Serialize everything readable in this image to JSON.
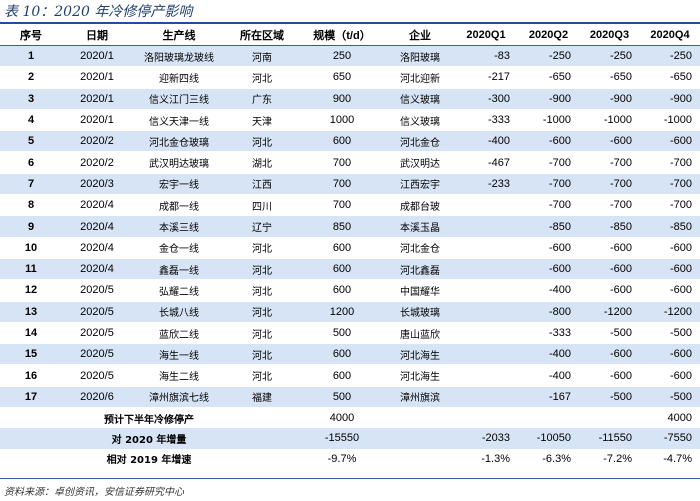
{
  "title": "表 10：2020 年冷修停产影响",
  "headers": [
    "序号",
    "日期",
    "生产线",
    "所在区域",
    "规模（t/d）",
    "企业",
    "2020Q1",
    "2020Q2",
    "2020Q3",
    "2020Q4"
  ],
  "rows": [
    {
      "no": "1",
      "date": "2020/1",
      "line": "洛阳玻璃龙玻线",
      "region": "河南",
      "scale": "250",
      "company": "洛阳玻璃",
      "q1": "-83",
      "q2": "-250",
      "q3": "-250",
      "q4": "-250"
    },
    {
      "no": "2",
      "date": "2020/1",
      "line": "迎新四线",
      "region": "河北",
      "scale": "650",
      "company": "河北迎新",
      "q1": "-217",
      "q2": "-650",
      "q3": "-650",
      "q4": "-650"
    },
    {
      "no": "3",
      "date": "2020/1",
      "line": "信义江门三线",
      "region": "广东",
      "scale": "900",
      "company": "信义玻璃",
      "q1": "-300",
      "q2": "-900",
      "q3": "-900",
      "q4": "-900"
    },
    {
      "no": "4",
      "date": "2020/1",
      "line": "信义天津一线",
      "region": "天津",
      "scale": "1000",
      "company": "信义玻璃",
      "q1": "-333",
      "q2": "-1000",
      "q3": "-1000",
      "q4": "-1000"
    },
    {
      "no": "5",
      "date": "2020/2",
      "line": "河北金仓玻璃",
      "region": "河北",
      "scale": "600",
      "company": "河北金仓",
      "q1": "-400",
      "q2": "-600",
      "q3": "-600",
      "q4": "-600"
    },
    {
      "no": "6",
      "date": "2020/2",
      "line": "武汉明达玻璃",
      "region": "湖北",
      "scale": "700",
      "company": "武汉明达",
      "q1": "-467",
      "q2": "-700",
      "q3": "-700",
      "q4": "-700"
    },
    {
      "no": "7",
      "date": "2020/3",
      "line": "宏宇一线",
      "region": "江西",
      "scale": "700",
      "company": "江西宏宇",
      "q1": "-233",
      "q2": "-700",
      "q3": "-700",
      "q4": "-700"
    },
    {
      "no": "8",
      "date": "2020/4",
      "line": "成都一线",
      "region": "四川",
      "scale": "700",
      "company": "成都台玻",
      "q1": "",
      "q2": "-700",
      "q3": "-700",
      "q4": "-700"
    },
    {
      "no": "9",
      "date": "2020/4",
      "line": "本溪三线",
      "region": "辽宁",
      "scale": "850",
      "company": "本溪玉晶",
      "q1": "",
      "q2": "-850",
      "q3": "-850",
      "q4": "-850"
    },
    {
      "no": "10",
      "date": "2020/4",
      "line": "金仓一线",
      "region": "河北",
      "scale": "600",
      "company": "河北金仓",
      "q1": "",
      "q2": "-600",
      "q3": "-600",
      "q4": "-600"
    },
    {
      "no": "11",
      "date": "2020/4",
      "line": "鑫磊一线",
      "region": "河北",
      "scale": "600",
      "company": "河北鑫磊",
      "q1": "",
      "q2": "-600",
      "q3": "-600",
      "q4": "-600"
    },
    {
      "no": "12",
      "date": "2020/5",
      "line": "弘耀二线",
      "region": "河北",
      "scale": "600",
      "company": "中国耀华",
      "q1": "",
      "q2": "-400",
      "q3": "-600",
      "q4": "-600"
    },
    {
      "no": "13",
      "date": "2020/5",
      "line": "长城八线",
      "region": "河北",
      "scale": "1200",
      "company": "长城玻璃",
      "q1": "",
      "q2": "-800",
      "q3": "-1200",
      "q4": "-1200"
    },
    {
      "no": "14",
      "date": "2020/5",
      "line": "蓝欣二线",
      "region": "河北",
      "scale": "500",
      "company": "唐山蓝欣",
      "q1": "",
      "q2": "-333",
      "q3": "-500",
      "q4": "-500"
    },
    {
      "no": "15",
      "date": "2020/5",
      "line": "海生一线",
      "region": "河北",
      "scale": "600",
      "company": "河北海生",
      "q1": "",
      "q2": "-400",
      "q3": "-600",
      "q4": "-600"
    },
    {
      "no": "16",
      "date": "2020/5",
      "line": "海生二线",
      "region": "河北",
      "scale": "600",
      "company": "河北海生",
      "q1": "",
      "q2": "-400",
      "q3": "-600",
      "q4": "-600"
    },
    {
      "no": "17",
      "date": "2020/6",
      "line": "漳州旗滨七线",
      "region": "福建",
      "scale": "500",
      "company": "漳州旗滨",
      "q1": "",
      "q2": "-167",
      "q3": "-500",
      "q4": "-500"
    }
  ],
  "summary": [
    {
      "label": "预计下半年冷修停产",
      "scale": "4000",
      "q1": "",
      "q2": "",
      "q3": "",
      "q4": "4000"
    },
    {
      "label": "对 2020 年增量",
      "scale": "-15550",
      "q1": "-2033",
      "q2": "-10050",
      "q3": "-11550",
      "q4": "-7550"
    },
    {
      "label": "相对 2019 年增速",
      "scale": "-9.7%",
      "q1": "-1.3%",
      "q2": "-6.3%",
      "q3": "-7.2%",
      "q4": "-4.7%"
    }
  ],
  "source": "资料来源：卓创资讯，安信证券研究中心",
  "colors": {
    "band": "#d6e4f5",
    "title": "#1f3f6e",
    "rule": "#1f4e9a"
  }
}
